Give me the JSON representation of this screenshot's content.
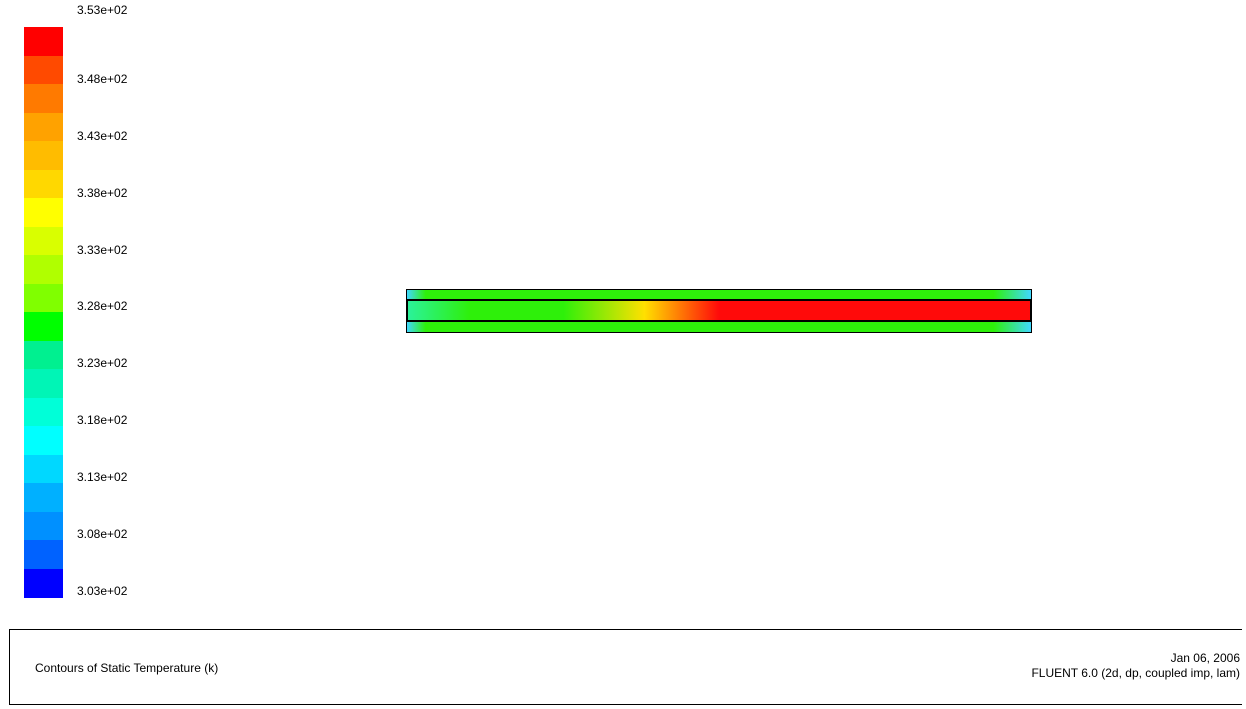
{
  "legend": {
    "labels": [
      "3.53e+02",
      "3.48e+02",
      "3.43e+02",
      "3.38e+02",
      "3.33e+02",
      "3.28e+02",
      "3.23e+02",
      "3.18e+02",
      "3.13e+02",
      "3.08e+02",
      "3.03e+02"
    ],
    "colors": [
      "#ff0000",
      "#ff4a00",
      "#ff7a00",
      "#ffa200",
      "#ffbc00",
      "#ffd800",
      "#ffff00",
      "#d9ff00",
      "#b0ff00",
      "#80ff00",
      "#00ff00",
      "#00f090",
      "#00f5b6",
      "#00ffd8",
      "#00ffff",
      "#00d8ff",
      "#00b0ff",
      "#0090ff",
      "#0062ff",
      "#0000ff"
    ]
  },
  "plot": {
    "strip_colors": {
      "edge": "#40d8ff",
      "band": "#2ef00a",
      "core_start": "#2bf29a",
      "core_mid": "#ffe000",
      "core_hot": "#ff0a0a"
    }
  },
  "footer": {
    "title": "Contours of Static Temperature (k)",
    "date": "Jan 06, 2006",
    "solver": "FLUENT 6.0 (2d, dp, coupled imp, lam)"
  }
}
